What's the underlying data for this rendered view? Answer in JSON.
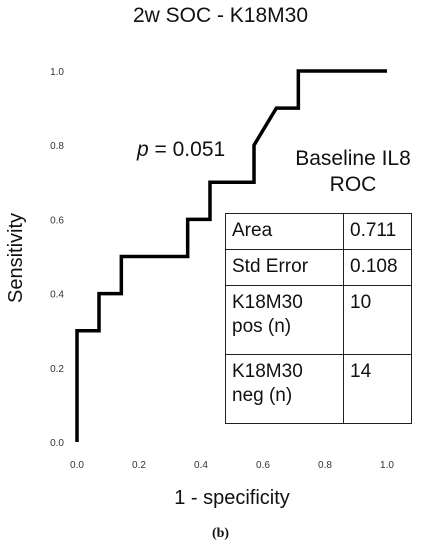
{
  "chart_data": {
    "type": "line",
    "title": "2w SOC - K18M30",
    "xlabel": "1 - specificity",
    "ylabel": "Sensitivity",
    "xlim": [
      0.0,
      1.0
    ],
    "ylim": [
      0.0,
      1.0
    ],
    "xticks": [
      "0.0",
      "0.2",
      "0.4",
      "0.6",
      "0.8",
      "1.0"
    ],
    "yticks": [
      "0.0",
      "0.2",
      "0.4",
      "0.6",
      "0.8",
      "1.0"
    ],
    "grid": false,
    "series": [
      {
        "x": [
          0.0,
          0.0,
          0.071,
          0.071,
          0.143,
          0.143,
          0.357,
          0.357,
          0.429,
          0.429,
          0.571,
          0.571,
          0.643,
          0.643,
          0.714,
          0.714,
          1.0
        ],
        "y": [
          0.0,
          0.3,
          0.3,
          0.4,
          0.4,
          0.5,
          0.5,
          0.6,
          0.6,
          0.7,
          0.7,
          0.8,
          0.9,
          0.9,
          0.9,
          1.0,
          1.0
        ],
        "color": "#000000"
      }
    ],
    "annotation": {
      "p_symbol": "p",
      "p_text": " = 0.051"
    }
  },
  "table": {
    "title_line1": "Baseline IL8",
    "title_line2": "ROC",
    "rows": [
      {
        "label": "Area",
        "value": "0.711"
      },
      {
        "label": "Std Error",
        "value": "0.108"
      },
      {
        "label": "K18M30\npos (n)",
        "value": "10"
      },
      {
        "label": "K18M30\nneg (n)",
        "value": "14"
      }
    ]
  },
  "caption": "(b)"
}
